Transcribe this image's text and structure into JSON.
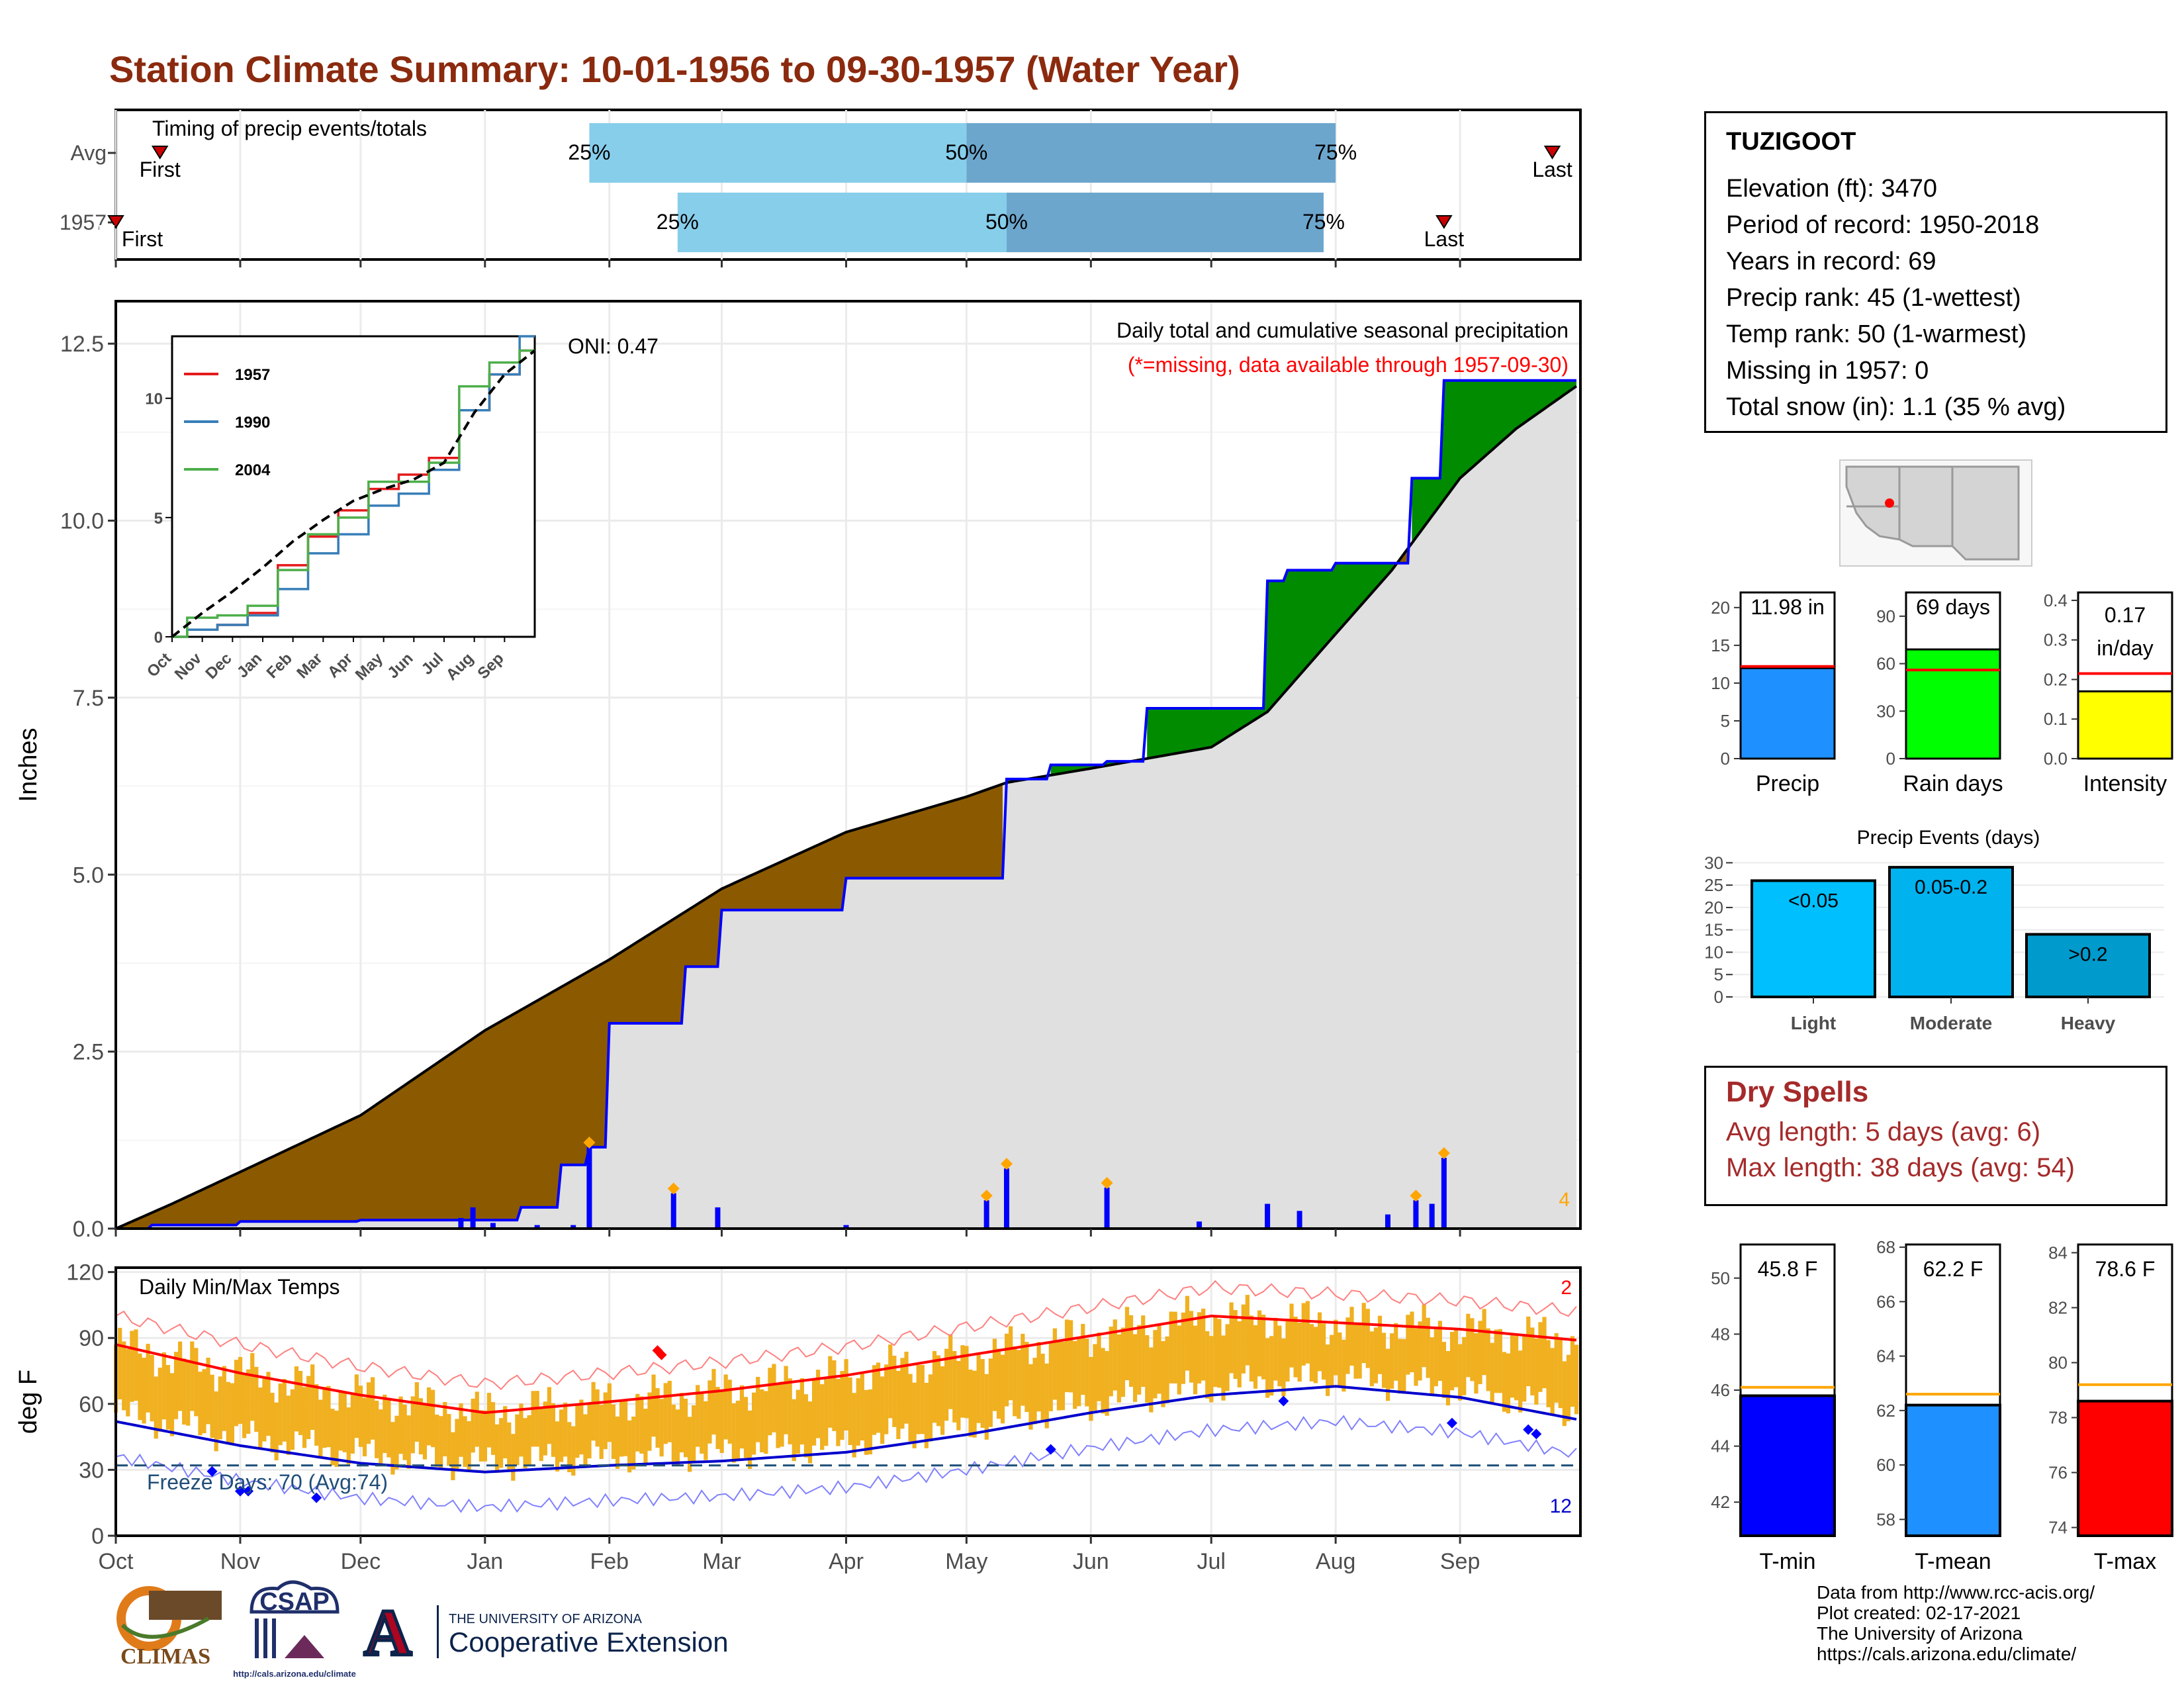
{
  "title": "Station Climate Summary: 10-01-1956 to 09-30-1957 (Water Year)",
  "timing": {
    "label": "Timing of precip events/totals",
    "rows": [
      {
        "name": "Avg",
        "first": "First",
        "last": "Last",
        "p25_label": "25%",
        "p50_label": "50%",
        "p75_label": "75%",
        "first_date": "1956-10-12",
        "last_date": "1957-09-24",
        "p25_date": "1957-01-27",
        "p50_date": "1957-05-01",
        "p75_date": "1957-08-01"
      },
      {
        "name": "1957",
        "first": "First",
        "last": "Last",
        "p25_label": "25%",
        "p50_label": "50%",
        "p75_label": "75%",
        "first_date": "1956-10-01",
        "last_date": "1957-08-28",
        "p25_date": "1957-02-18",
        "p50_date": "1957-05-11",
        "p75_date": "1957-07-29"
      }
    ]
  },
  "precip_panel": {
    "ylabel": "Inches",
    "header": "Daily total and cumulative seasonal precipitation",
    "subheader": "(*=missing, data available through 1957-09-30)",
    "oni": "ONI: 0.47",
    "count_label": "4",
    "yticks": [
      "0.0",
      "2.5",
      "5.0",
      "7.5",
      "10.0",
      "12.5"
    ],
    "months": [
      "Oct",
      "Nov",
      "Dec",
      "Jan",
      "Feb",
      "Mar",
      "Apr",
      "May",
      "Jun",
      "Jul",
      "Aug",
      "Sep"
    ]
  },
  "inset": {
    "legend": [
      "1957",
      "1990",
      "2004"
    ],
    "yticks": [
      "0",
      "5",
      "10"
    ],
    "months": [
      "Oct",
      "Nov",
      "Dec",
      "Jan",
      "Feb",
      "Mar",
      "Apr",
      "May",
      "Jun",
      "Jul",
      "Aug",
      "Sep"
    ]
  },
  "temp_panel": {
    "label": "Daily Min/Max Temps",
    "ylabel": "deg F",
    "yticks": [
      "0",
      "30",
      "60",
      "90",
      "120"
    ],
    "freeze_label": "Freeze Days: 70 (Avg:74)",
    "hot_count": "2",
    "cold_count": "12",
    "months": [
      "Oct",
      "Nov",
      "Dec",
      "Jan",
      "Feb",
      "Mar",
      "Apr",
      "May",
      "Jun",
      "Jul",
      "Aug",
      "Sep"
    ]
  },
  "station": {
    "name": "TUZIGOOT",
    "lines": [
      "Elevation (ft): 3470",
      "Period of record: 1950-2018",
      "Years in record: 69",
      "Precip rank: 45 (1-wettest)",
      "Temp rank: 50 (1-warmest)",
      "Missing in 1957: 0",
      "Total snow (in): 1.1 (35 % avg)"
    ]
  },
  "summary_bars": [
    {
      "label": "Precip",
      "value_label": "11.98 in",
      "value": 11.98,
      "avg": 12.2,
      "ymax": 22,
      "ticks": [
        "0",
        "5",
        "10",
        "15",
        "20"
      ],
      "color": "#1e90ff"
    },
    {
      "label": "Rain days",
      "value_label": "69 days",
      "value": 69,
      "avg": 56,
      "ymax": 105,
      "ticks": [
        "0",
        "30",
        "60",
        "90"
      ],
      "color": "#00ff00"
    },
    {
      "label": "Intensity",
      "value_label": "0.17 in/day",
      "value_line1": "0.17",
      "value_line2": "in/day",
      "value": 0.17,
      "avg": 0.215,
      "ymax": 0.42,
      "ticks": [
        "0.0",
        "0.1",
        "0.2",
        "0.3",
        "0.4"
      ],
      "color": "#ffff00"
    }
  ],
  "precip_events": {
    "title": "Precip Events (days)",
    "yticks": [
      "0",
      "5",
      "10",
      "15",
      "20",
      "25",
      "30"
    ],
    "bars": [
      {
        "category": "Light",
        "label": "<0.05",
        "value": 26,
        "color": "#00bfff"
      },
      {
        "category": "Moderate",
        "label": "0.05-0.2",
        "value": 29,
        "color": "#00b2ee"
      },
      {
        "category": "Heavy",
        "label": ">0.2",
        "value": 14,
        "color": "#009acd"
      }
    ]
  },
  "dry_spells": {
    "title": "Dry Spells",
    "lines": [
      "Avg length: 5 days (avg: 6)",
      "Max length: 38 days (avg: 54)"
    ]
  },
  "temp_bars": [
    {
      "label": "T-min",
      "value_label": "45.8 F",
      "value": 45.8,
      "avg": 46.1,
      "ymin": 40.8,
      "ymax": 51.2,
      "ticks": [
        "42",
        "44",
        "46",
        "48",
        "50"
      ],
      "color": "#0000ff"
    },
    {
      "label": "T-mean",
      "value_label": "62.2 F",
      "value": 62.2,
      "avg": 62.6,
      "ymin": 57.4,
      "ymax": 68.1,
      "ticks": [
        "58",
        "60",
        "62",
        "64",
        "66",
        "68"
      ],
      "color": "#1e90ff"
    },
    {
      "label": "T-max",
      "value_label": "78.6 F",
      "value": 78.6,
      "avg": 79.2,
      "ymin": 73.7,
      "ymax": 84.3,
      "ticks": [
        "74",
        "76",
        "78",
        "80",
        "82",
        "84"
      ],
      "color": "#ff0000"
    }
  ],
  "credits": [
    "Data from http://www.rcc-acis.org/",
    "Plot created: 02-17-2021",
    "The University of Arizona",
    "https://cals.arizona.edu/climate/"
  ],
  "logos": {
    "climas": "CLIMAS",
    "csap": "CSAP",
    "csap_url": "http://cals.arizona.edu/climate",
    "ua_line1": "THE UNIVERSITY OF ARIZONA",
    "ua_line2": "Cooperative Extension",
    "ua_letter": "A"
  },
  "chart_data": [
    {
      "type": "area",
      "title": "Daily total and cumulative seasonal precipitation",
      "ylabel": "Inches",
      "ylim": [
        0,
        13.1
      ],
      "x_range": [
        "1956-10-01",
        "1957-09-30"
      ],
      "series": [
        {
          "name": "1957",
          "x": [
            "1956-10-01",
            "1956-10-10",
            "1956-11-01",
            "1956-12-01",
            "1957-01-01",
            "1957-01-10",
            "1957-01-20",
            "1957-01-27",
            "1957-02-01",
            "1957-02-20",
            "1957-03-01",
            "1957-04-01",
            "1957-05-01",
            "1957-05-11",
            "1957-05-22",
            "1957-06-05",
            "1957-06-15",
            "1957-07-01",
            "1957-07-15",
            "1957-07-20",
            "1957-08-01",
            "1957-08-10",
            "1957-08-20",
            "1957-08-27",
            "1957-08-28",
            "1957-09-30"
          ],
          "values": [
            0.0,
            0.05,
            0.1,
            0.12,
            0.12,
            0.3,
            0.9,
            1.15,
            2.9,
            3.7,
            4.5,
            4.95,
            4.95,
            6.35,
            6.55,
            6.6,
            7.35,
            7.35,
            9.15,
            9.3,
            9.4,
            9.4,
            10.6,
            10.6,
            11.98,
            11.98
          ]
        },
        {
          "name": "Avg",
          "x": [
            "1956-10-01",
            "1956-10-15",
            "1956-11-01",
            "1956-12-01",
            "1957-01-01",
            "1957-02-01",
            "1957-03-01",
            "1957-04-01",
            "1957-05-01",
            "1957-05-11",
            "1957-06-01",
            "1957-07-01",
            "1957-07-15",
            "1957-08-01",
            "1957-08-15",
            "1957-09-01",
            "1957-09-15",
            "1957-09-30"
          ],
          "values": [
            0.0,
            0.35,
            0.8,
            1.6,
            2.8,
            3.8,
            4.8,
            5.6,
            6.1,
            6.3,
            6.5,
            6.8,
            7.3,
            8.4,
            9.3,
            10.6,
            11.3,
            11.9
          ]
        }
      ],
      "daily_precip": {
        "x": [
          "1956-12-26",
          "1956-12-29",
          "1957-01-03",
          "1957-01-14",
          "1957-01-23",
          "1957-01-27",
          "1957-02-17",
          "1957-02-28",
          "1957-04-01",
          "1957-05-06",
          "1957-05-11",
          "1957-06-05",
          "1957-06-28",
          "1957-07-15",
          "1957-07-23",
          "1957-08-14",
          "1957-08-21",
          "1957-08-25",
          "1957-08-28"
        ],
        "values": [
          0.15,
          0.3,
          0.08,
          0.05,
          0.05,
          1.15,
          0.5,
          0.3,
          0.05,
          0.4,
          0.85,
          0.58,
          0.1,
          0.35,
          0.25,
          0.2,
          0.4,
          0.35,
          1.0
        ]
      }
    },
    {
      "type": "line",
      "title": "Daily Min/Max Temps",
      "ylabel": "deg F",
      "ylim": [
        0,
        120
      ],
      "freeze_line": 32,
      "series": [
        {
          "name": "avg max",
          "x": [
            "Oct",
            "Nov",
            "Dec",
            "Jan",
            "Feb",
            "Mar",
            "Apr",
            "May",
            "Jun",
            "Jul",
            "Aug",
            "Sep",
            "Sep-end"
          ],
          "values": [
            87,
            74,
            64,
            56,
            61,
            66,
            73,
            82,
            91,
            100,
            97,
            94,
            89
          ]
        },
        {
          "name": "avg min",
          "x": [
            "Oct",
            "Nov",
            "Dec",
            "Jan",
            "Feb",
            "Mar",
            "Apr",
            "May",
            "Jun",
            "Jul",
            "Aug",
            "Sep",
            "Sep-end"
          ],
          "values": [
            52,
            41,
            33,
            29,
            32,
            34,
            38,
            46,
            56,
            64,
            68,
            63,
            53
          ]
        }
      ]
    },
    {
      "type": "line",
      "title": "",
      "x": [
        "Oct",
        "Nov",
        "Dec",
        "Jan",
        "Feb",
        "Mar",
        "Apr",
        "May",
        "Jun",
        "Jul",
        "Aug",
        "Sep",
        "Sep-end"
      ],
      "series": [
        {
          "name": "1957",
          "values": [
            0,
            0.3,
            0.5,
            1.0,
            3.0,
            4.2,
            5.3,
            6.2,
            6.8,
            7.5,
            9.5,
            11.0,
            12.0
          ]
        },
        {
          "name": "1990",
          "values": [
            0,
            0.3,
            0.5,
            0.9,
            2.0,
            3.5,
            4.3,
            5.5,
            6.0,
            7.0,
            9.5,
            11.0,
            12.6
          ]
        },
        {
          "name": "2004",
          "values": [
            0,
            0.8,
            0.9,
            1.3,
            2.8,
            4.3,
            5.0,
            6.5,
            6.5,
            7.3,
            10.5,
            11.5,
            12.0
          ]
        },
        {
          "name": "avg",
          "values": [
            0,
            1.0,
            1.9,
            2.9,
            4.0,
            4.9,
            5.7,
            6.2,
            6.6,
            7.3,
            9.4,
            11.0,
            12.0
          ]
        }
      ]
    }
  ]
}
